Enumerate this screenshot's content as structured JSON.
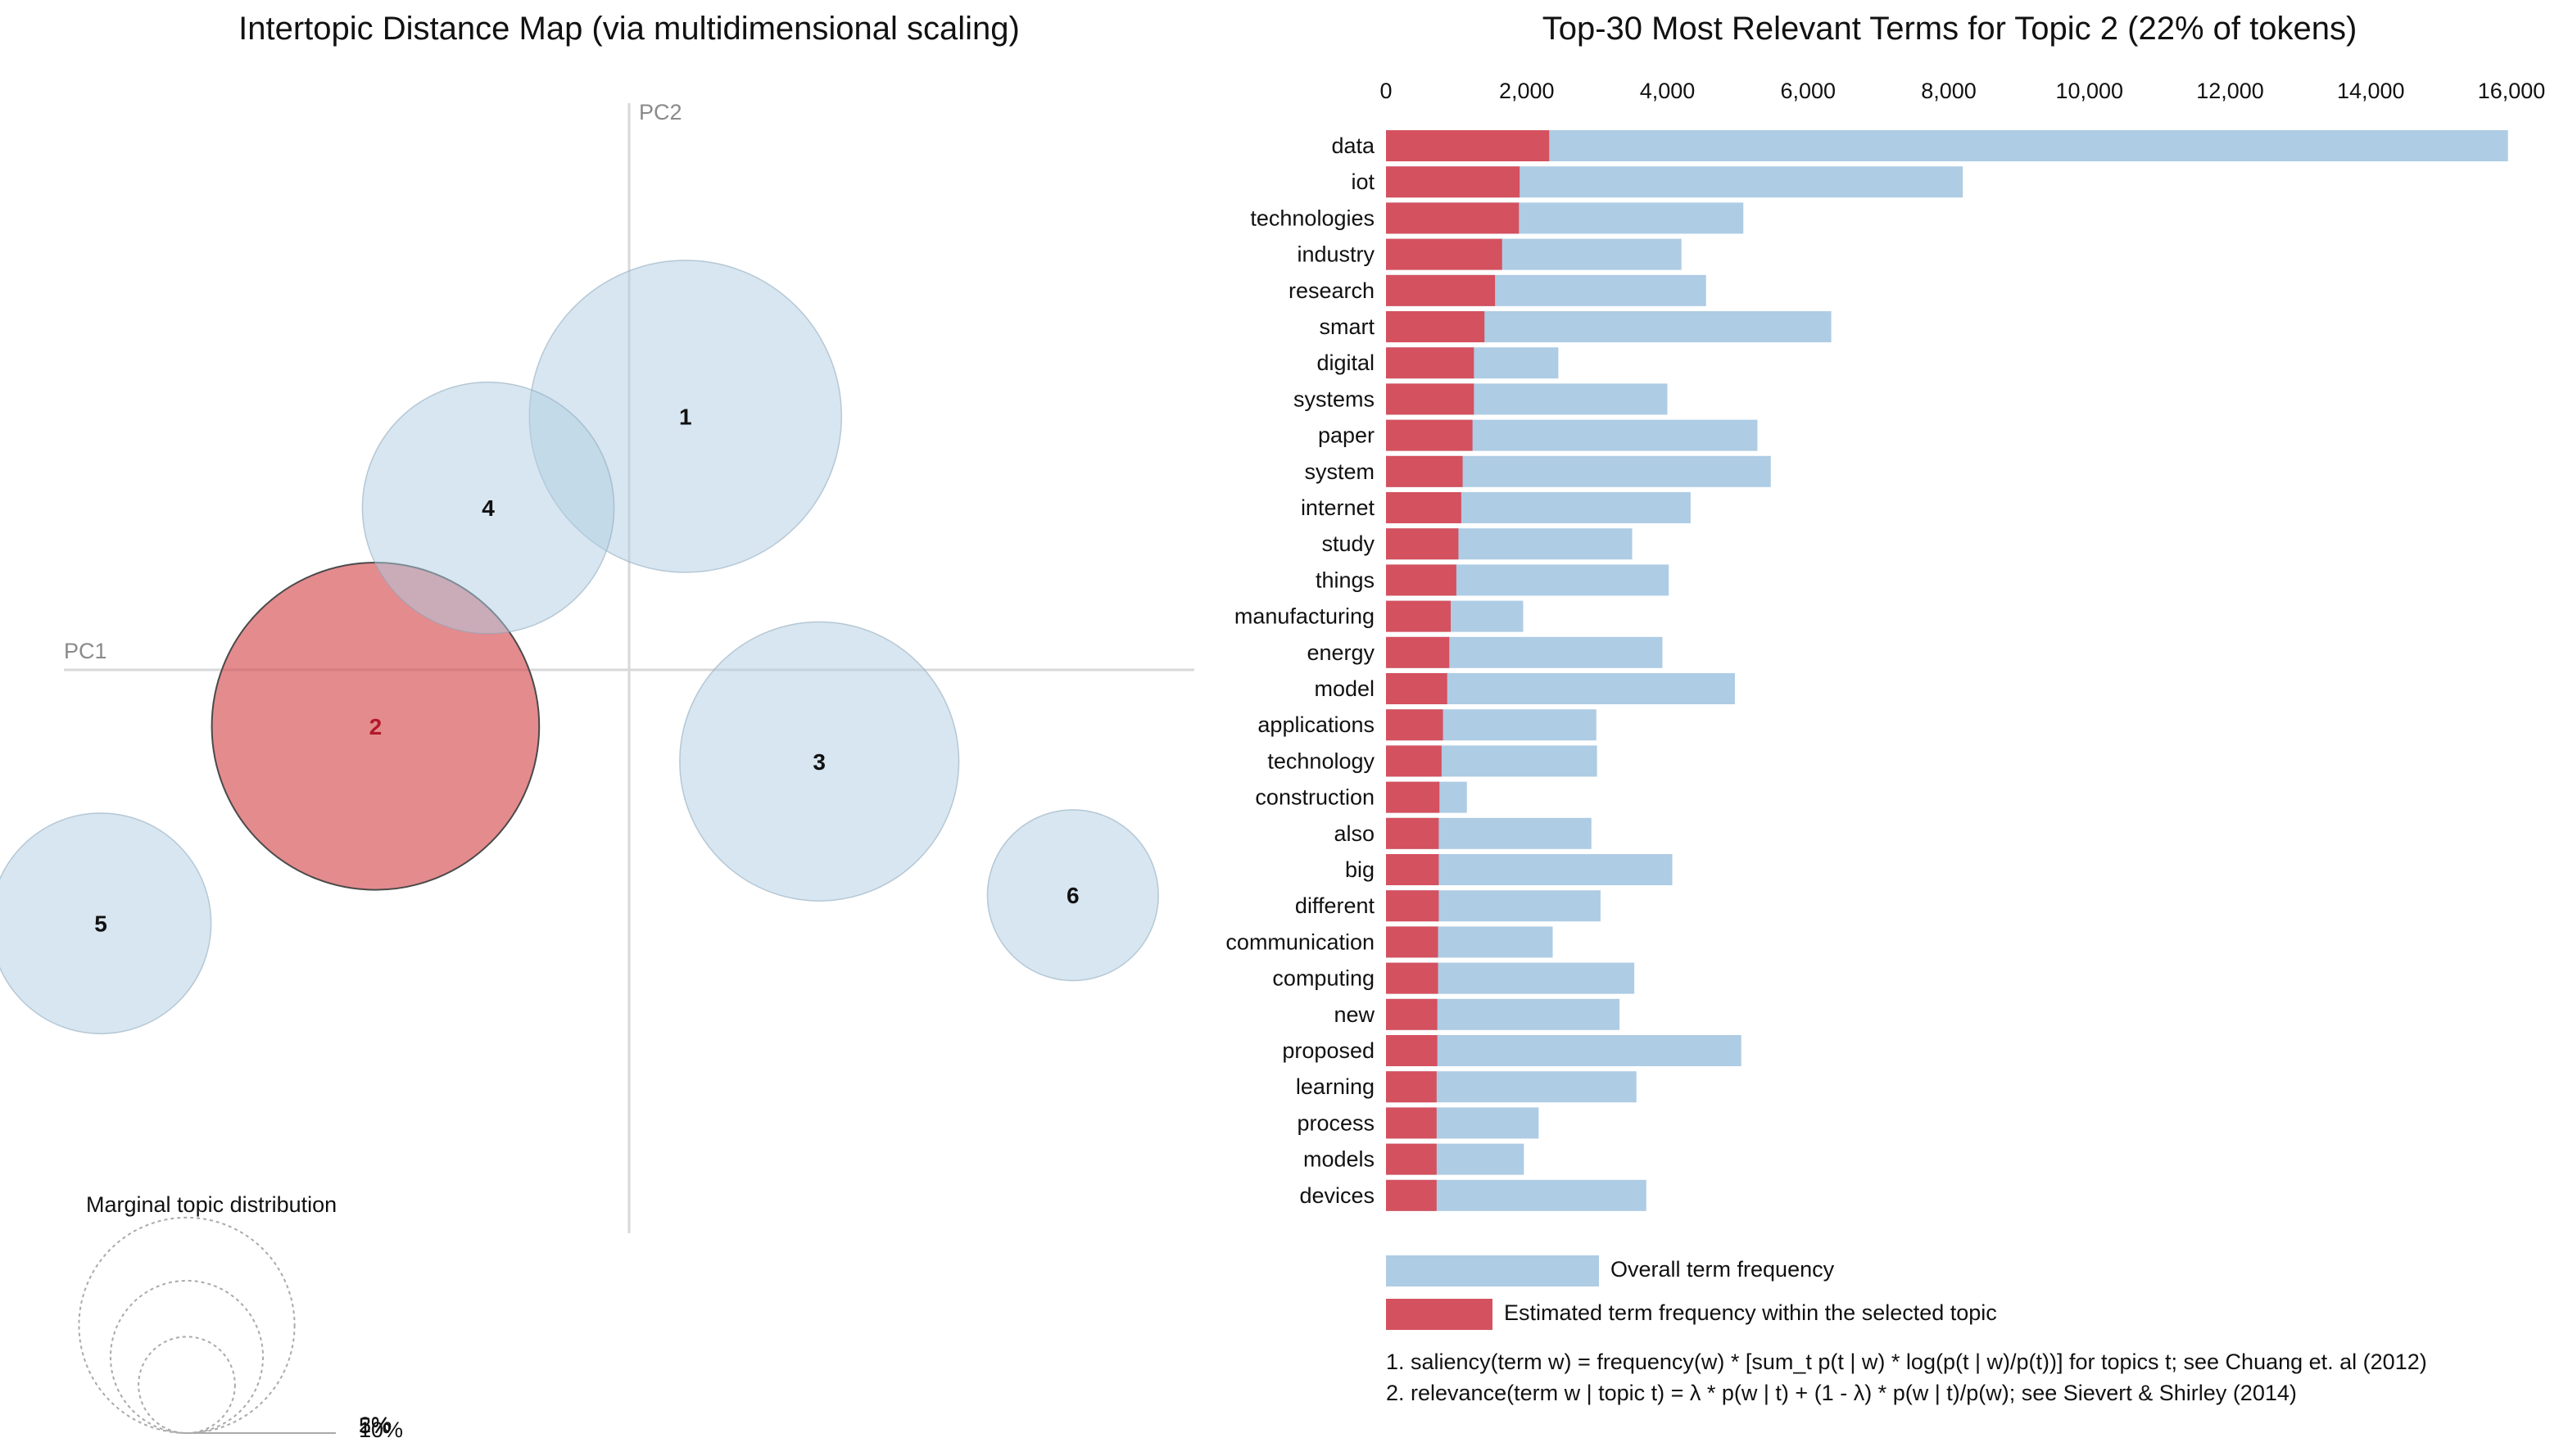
{
  "chart_data": [
    {
      "type": "scatter",
      "title": "Intertopic Distance Map (via multidimensional scaling)",
      "xlabel": "PC1",
      "ylabel": "PC2",
      "topics": [
        {
          "id": "1",
          "x": 0.08,
          "y": 0.36,
          "share": 20,
          "selected": false
        },
        {
          "id": "2",
          "x": -0.36,
          "y": -0.08,
          "share": 22,
          "selected": true
        },
        {
          "id": "3",
          "x": 0.27,
          "y": -0.13,
          "share": 16,
          "selected": false
        },
        {
          "id": "4",
          "x": -0.2,
          "y": 0.23,
          "share": 13,
          "selected": false
        },
        {
          "id": "5",
          "x": -0.75,
          "y": -0.36,
          "share": 10,
          "selected": false
        },
        {
          "id": "6",
          "x": 0.63,
          "y": -0.32,
          "share": 6,
          "selected": false
        }
      ],
      "legend": {
        "title": "Marginal topic distribution",
        "levels": [
          {
            "label": "2%",
            "value": 2
          },
          {
            "label": "5%",
            "value": 5
          },
          {
            "label": "10%",
            "value": 10
          }
        ]
      }
    },
    {
      "type": "bar",
      "orientation": "horizontal",
      "title": "Top-30 Most Relevant Terms for Topic 2 (22% of tokens)",
      "xlim": [
        0,
        16000
      ],
      "xticks": [
        0,
        2000,
        4000,
        6000,
        8000,
        10000,
        12000,
        14000,
        16000
      ],
      "xtick_labels": [
        "0",
        "2,000",
        "4,000",
        "6,000",
        "8,000",
        "10,000",
        "12,000",
        "14,000",
        "16,000"
      ],
      "categories": [
        "data",
        "iot",
        "technologies",
        "industry",
        "research",
        "smart",
        "digital",
        "systems",
        "paper",
        "system",
        "internet",
        "study",
        "things",
        "manufacturing",
        "energy",
        "model",
        "applications",
        "technology",
        "construction",
        "also",
        "big",
        "different",
        "communication",
        "computing",
        "new",
        "proposed",
        "learning",
        "process",
        "models",
        "devices"
      ],
      "series": [
        {
          "name": "Overall term frequency",
          "color": "#aecce4",
          "values": [
            15950,
            8200,
            5080,
            4200,
            4550,
            6330,
            2450,
            4000,
            5280,
            5470,
            4330,
            3500,
            4020,
            1950,
            3930,
            4960,
            2990,
            3000,
            1150,
            2920,
            4070,
            3050,
            2370,
            3530,
            3320,
            5050,
            3560,
            2170,
            1960,
            3700
          ]
        },
        {
          "name": "Estimated term frequency within the selected topic",
          "color": "#d4515f",
          "values": [
            2320,
            1900,
            1890,
            1650,
            1550,
            1400,
            1250,
            1250,
            1230,
            1090,
            1070,
            1030,
            1000,
            920,
            900,
            870,
            810,
            790,
            760,
            750,
            750,
            750,
            740,
            740,
            730,
            730,
            720,
            720,
            720,
            720
          ]
        }
      ],
      "footnotes": [
        "1. saliency(term w) = frequency(w) * [sum_t p(t | w) * log(p(t | w)/p(t))] for topics t; see Chuang et. al (2012)",
        "2. relevance(term w | topic t) = λ * p(w | t) + (1 - λ) * p(w | t)/p(w); see Sievert & Shirley (2014)"
      ]
    }
  ]
}
